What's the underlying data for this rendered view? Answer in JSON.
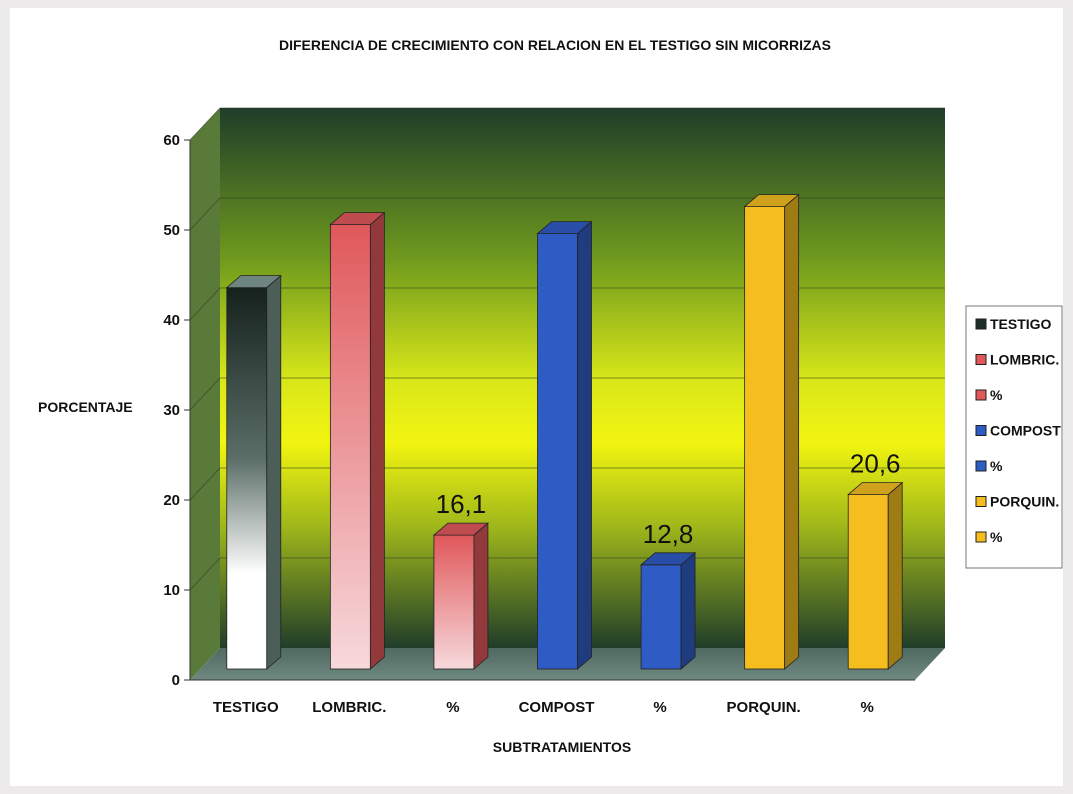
{
  "chart_data": {
    "type": "bar",
    "title": "DIFERENCIA DE CRECIMIENTO CON RELACION EN EL TESTIGO SIN MICORRIZAS",
    "xlabel": "SUBTRATAMIENTOS",
    "ylabel": "PORCENTAJE",
    "ylim": [
      0,
      60
    ],
    "yticks": [
      "0",
      "10",
      "20",
      "30",
      "40",
      "50",
      "60"
    ],
    "categories": [
      "TESTIGO",
      "LOMBRIC.",
      "%",
      "COMPOST",
      "%",
      "PORQUIN.",
      "%"
    ],
    "values": [
      43.6,
      50.6,
      16.1,
      49.6,
      12.8,
      52.6,
      20.6
    ],
    "data_labels": [
      "",
      "",
      "16,1",
      "",
      "12,8",
      "",
      "20,6"
    ],
    "legend": [
      "TESTIGO",
      "LOMBRIC.",
      "%",
      "COMPOST",
      "%",
      "PORQUIN.",
      "%"
    ],
    "legend_position": "right",
    "grid": true,
    "three_d": true,
    "colors": [
      "#1d2e2b",
      "#e0585a",
      "#e0585a",
      "#2f5cc4",
      "#2f5cc4",
      "#f5bd1e",
      "#f5bd1e"
    ]
  }
}
